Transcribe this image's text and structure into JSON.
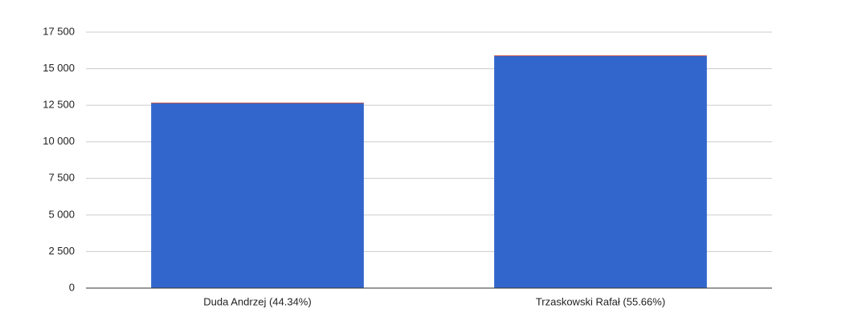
{
  "chart_data": {
    "type": "stacked-bar",
    "categories": [
      "Duda Andrzej (44.34%)",
      "Trzaskowski Rafał (55.66%)"
    ],
    "series": [
      {
        "color": "#3366cc",
        "values": [
          12640,
          15870
        ]
      },
      {
        "color": "#dc3912",
        "values": [
          40,
          40
        ]
      }
    ],
    "ylim": [
      0,
      17500
    ],
    "yticks": [
      0,
      {
        "value": 2500,
        "label": "2 500"
      },
      {
        "value": 5000,
        "label": "5 000"
      },
      {
        "value": 7500,
        "label": "7 500"
      },
      {
        "value": 10000,
        "label": "10 000"
      },
      {
        "value": 12500,
        "label": "12 500"
      },
      {
        "value": 15000,
        "label": "15 000"
      },
      {
        "value": 17500,
        "label": "17 500"
      }
    ],
    "grid": true
  }
}
